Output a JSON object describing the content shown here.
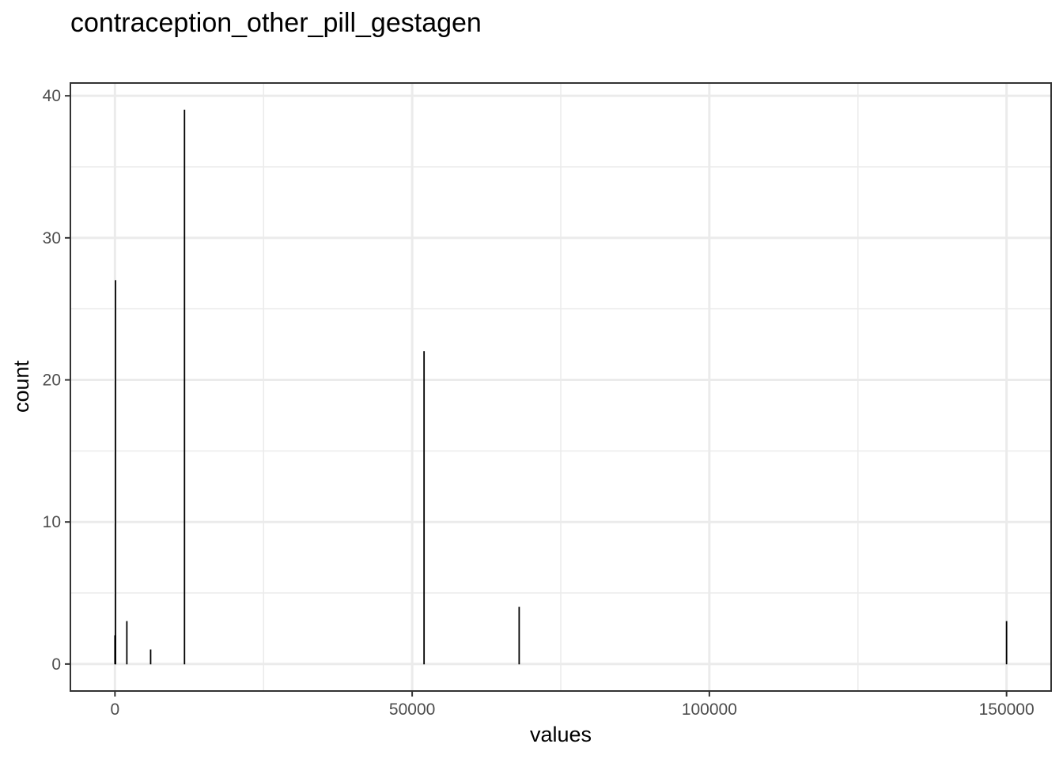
{
  "chart_data": {
    "type": "bar",
    "title": "contraception_other_pill_gestagen",
    "xlabel": "values",
    "ylabel": "count",
    "xlim": [
      -7500,
      157500
    ],
    "ylim": [
      -1.9,
      40.9
    ],
    "x_ticks": [
      0,
      50000,
      100000,
      150000
    ],
    "x_tick_labels": [
      "0",
      "50000",
      "100000",
      "150000"
    ],
    "x_minor_ticks": [
      25000,
      75000,
      125000
    ],
    "y_ticks": [
      0,
      10,
      20,
      30,
      40
    ],
    "y_tick_labels": [
      "0",
      "10",
      "20",
      "30",
      "40"
    ],
    "y_minor_ticks": [
      5,
      15,
      25,
      35
    ],
    "grid": true,
    "bars": [
      {
        "x": 0,
        "count": 2
      },
      {
        "x": 100,
        "count": 27
      },
      {
        "x": 2000,
        "count": 3
      },
      {
        "x": 6000,
        "count": 1
      },
      {
        "x": 11700,
        "count": 39
      },
      {
        "x": 52000,
        "count": 22
      },
      {
        "x": 68000,
        "count": 4
      },
      {
        "x": 150000,
        "count": 3
      }
    ],
    "colors": {
      "bar": "#000000",
      "grid": "#ebebeb",
      "border": "#333333",
      "tick_text": "#4d4d4d"
    }
  }
}
